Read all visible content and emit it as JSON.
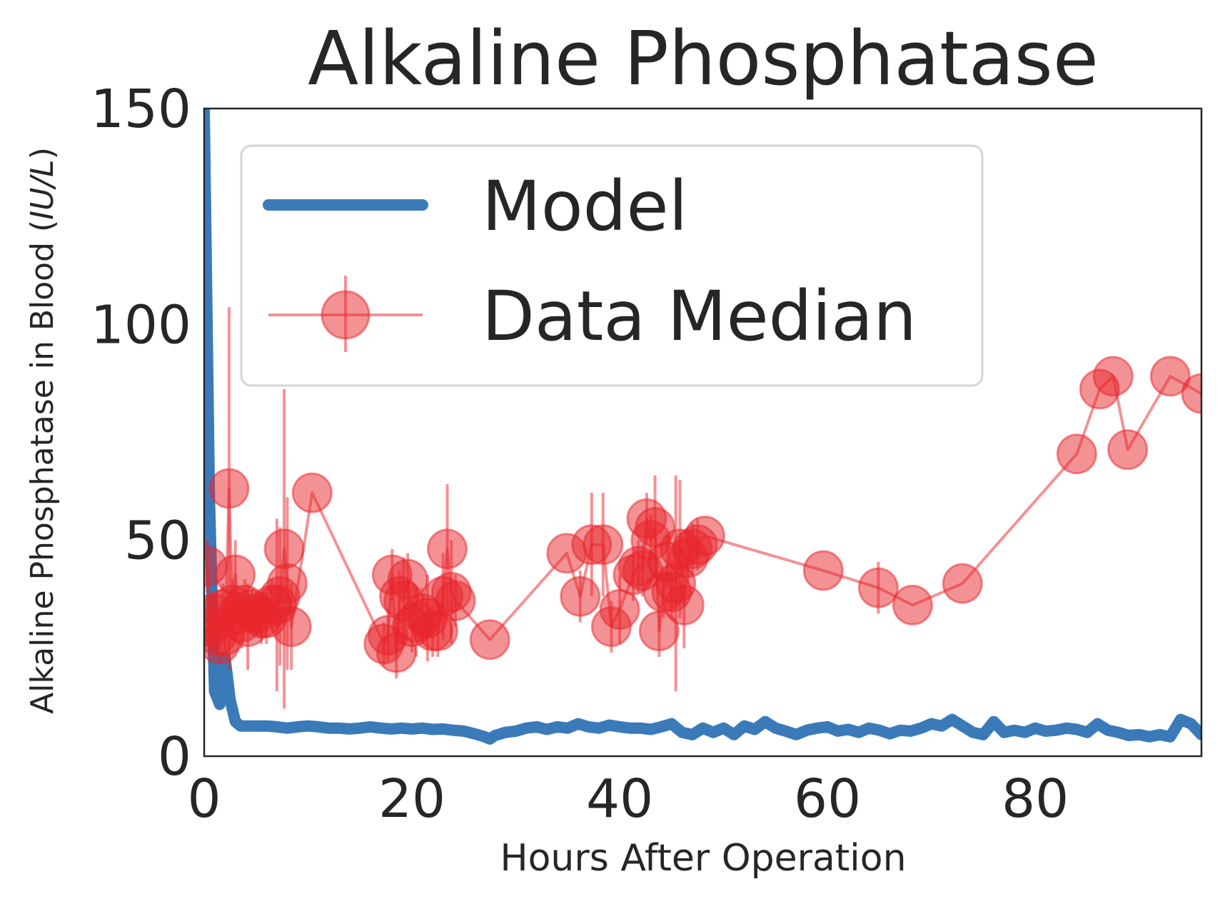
{
  "chart_data": {
    "type": "line",
    "title": "Alkaline Phosphatase",
    "xlabel": "Hours After Operation",
    "ylabel": "Alkaline Phosphatase in Blood (IU/L)",
    "ylabel_plain": "Alkaline Phosphatase in Blood (",
    "ylabel_unit": "IU/L",
    "ylabel_close": ")",
    "xlim": [
      0,
      96
    ],
    "ylim": [
      0,
      150
    ],
    "xticks": [
      0,
      20,
      40,
      60,
      80
    ],
    "yticks": [
      0,
      50,
      100,
      150
    ],
    "grid": false,
    "legend": {
      "placement": "upper-left",
      "entries": [
        "Model",
        "Data Median"
      ]
    },
    "colors": {
      "model": "#3a7ab8",
      "data": "#e8262b",
      "axis": "#262626"
    },
    "series": [
      {
        "name": "Model",
        "style": "line",
        "x": [
          0.0,
          0.5,
          1.0,
          1.5,
          2.0,
          2.5,
          3.0,
          3.5,
          4.0,
          5,
          6,
          7,
          8,
          9,
          10,
          11,
          12,
          13,
          14,
          15,
          16,
          17,
          18,
          19,
          20,
          21,
          22,
          23,
          24,
          25,
          26,
          27,
          27.5,
          28,
          29,
          30,
          31,
          32,
          33,
          34,
          35,
          36,
          37,
          38,
          39,
          40,
          41,
          42,
          43,
          44,
          45,
          46,
          47,
          48,
          49,
          50,
          51,
          52,
          53,
          54,
          55,
          56,
          57,
          58,
          59,
          60,
          61,
          62,
          63,
          64,
          65,
          66,
          67,
          68,
          69,
          70,
          71,
          72,
          73,
          74,
          75,
          76,
          77,
          78,
          79,
          80,
          81,
          82,
          83,
          84,
          85,
          86,
          87,
          88,
          89,
          90,
          91,
          92,
          93,
          94,
          95,
          96
        ],
        "y": [
          150,
          60,
          15,
          12,
          23,
          13,
          8,
          7,
          7,
          7,
          7,
          6.8,
          6.5,
          6.8,
          7,
          6.8,
          6.5,
          6.5,
          6.3,
          6.5,
          6.8,
          6.5,
          6.3,
          6.5,
          6.3,
          6.5,
          6.2,
          6.3,
          6.0,
          5.8,
          5.2,
          4.5,
          4.0,
          4.8,
          5.5,
          5.8,
          6.5,
          6.8,
          6.2,
          6.8,
          6.5,
          7.5,
          6.8,
          6.5,
          7.2,
          6.8,
          6.5,
          6.5,
          6.2,
          6.8,
          7.5,
          5.5,
          5.0,
          6.5,
          5.5,
          6.5,
          5.0,
          7.0,
          6.2,
          8.0,
          6.5,
          5.8,
          5.0,
          6.0,
          6.5,
          6.8,
          5.8,
          6.2,
          5.5,
          6.5,
          6.0,
          5.2,
          6.0,
          5.8,
          6.5,
          7.5,
          7.0,
          8.5,
          7.0,
          5.5,
          5.0,
          8.0,
          5.5,
          6.0,
          5.5,
          6.5,
          5.8,
          6.0,
          6.5,
          6.2,
          5.5,
          7.5,
          6.0,
          5.5,
          4.8,
          5.0,
          4.5,
          5.0,
          4.5,
          8.5,
          7.5,
          5.0
        ]
      },
      {
        "name": "Data Median",
        "style": "line-markers-errorbars",
        "x": [
          0.3,
          0.6,
          0.9,
          1.2,
          1.5,
          1.8,
          2.0,
          2.4,
          2.7,
          3.0,
          3.3,
          3.6,
          3.9,
          4.2,
          4.6,
          5.0,
          5.5,
          6.0,
          6.5,
          7.0,
          7.3,
          7.7,
          8.0,
          8.4,
          10.4,
          17.3,
          17.7,
          18.1,
          18.5,
          18.8,
          19.2,
          19.6,
          20.0,
          20.4,
          21.0,
          21.5,
          22.0,
          22.5,
          23.0,
          23.4,
          23.8,
          24.2,
          27.5,
          34.9,
          36.2,
          37.3,
          38.4,
          39.2,
          40.0,
          41.3,
          41.8,
          42.2,
          42.6,
          43.0,
          43.4,
          43.8,
          44.2,
          44.6,
          45.0,
          45.4,
          45.8,
          46.2,
          46.6,
          47.0,
          47.5,
          48.2,
          59.6,
          64.9,
          68.2,
          73.0,
          84.0,
          86.2,
          87.5,
          88.9,
          93.0,
          96.0
        ],
        "y": [
          44,
          30,
          33,
          28,
          26,
          34,
          28,
          62,
          35,
          42,
          33,
          31,
          35,
          30,
          34,
          33,
          32,
          32,
          35,
          35,
          37,
          48,
          40,
          30,
          61,
          26,
          28,
          42,
          24,
          37,
          36,
          41,
          30,
          31,
          33,
          32,
          29,
          29,
          37,
          48,
          38,
          36,
          27,
          47,
          37,
          49,
          49,
          30,
          34,
          42,
          44,
          43,
          55,
          50,
          53,
          29,
          38,
          45,
          38,
          40,
          48,
          35,
          46,
          48,
          49,
          51,
          43,
          39,
          35,
          40,
          70,
          85,
          88,
          71,
          88,
          84
        ],
        "err": [
          6,
          5,
          5,
          4,
          4,
          6,
          5,
          42,
          6,
          8,
          5,
          6,
          6,
          10,
          5,
          5,
          6,
          6,
          6,
          20,
          16,
          37,
          20,
          10,
          0,
          5,
          6,
          6,
          6,
          6,
          10,
          6,
          6,
          8,
          6,
          10,
          6,
          6,
          10,
          15,
          12,
          6,
          0,
          0,
          6,
          12,
          12,
          6,
          8,
          6,
          6,
          6,
          6,
          6,
          12,
          6,
          6,
          6,
          6,
          25,
          16,
          10,
          6,
          6,
          6,
          0,
          0,
          6,
          0,
          0,
          0,
          0,
          0,
          0,
          0,
          0
        ]
      }
    ]
  }
}
